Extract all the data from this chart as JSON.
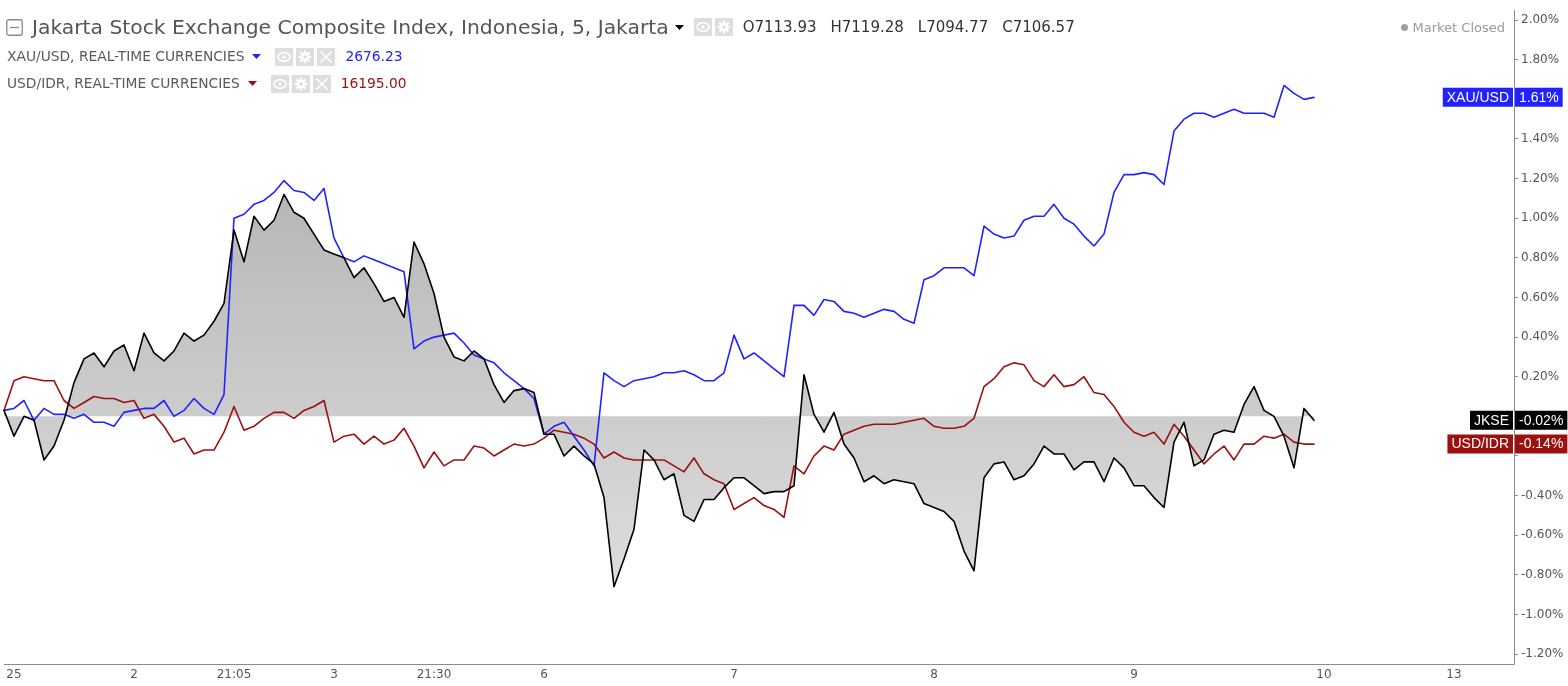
{
  "chart_data": {
    "type": "line",
    "categories": [
      null,
      "25",
      null,
      null,
      null,
      null,
      null,
      null,
      null,
      null,
      null,
      null,
      null,
      "2",
      null,
      null,
      null,
      null,
      null,
      null,
      null,
      null,
      null,
      "21:05",
      null,
      null,
      null,
      null,
      null,
      null,
      null,
      null,
      null,
      "3",
      null,
      null,
      null,
      null,
      null,
      null,
      null,
      null,
      null,
      "21:30",
      null,
      null,
      null,
      null,
      null,
      null,
      null,
      null,
      null,
      null,
      "6",
      null,
      null,
      null,
      null,
      null,
      null,
      null,
      null,
      null,
      null,
      null,
      null,
      null,
      null,
      null,
      null,
      null,
      null,
      "7",
      null,
      null,
      null,
      null,
      null,
      null,
      null,
      null,
      null,
      null,
      null,
      null,
      null,
      null,
      null,
      null,
      null,
      null,
      null,
      "8",
      null,
      null,
      null,
      null,
      null,
      null,
      null,
      null,
      null,
      null,
      null,
      null,
      null,
      null,
      null,
      null,
      null,
      null,
      null,
      "9",
      null,
      null,
      null,
      null,
      null,
      null,
      null,
      null,
      null,
      null,
      null,
      null,
      null,
      null,
      null,
      null,
      null,
      null,
      "10",
      null,
      null,
      null,
      null,
      null,
      null,
      null,
      null,
      null,
      null,
      null,
      null,
      "13",
      null,
      null,
      null,
      null,
      null,
      null
    ],
    "series": [
      {
        "name": "Jakarta Stock Exchange Composite Index, Indonesia, 5, Jakarta",
        "type": "area",
        "color": "#000000",
        "values": [
          0.03,
          -0.1,
          0.0,
          -0.02,
          -0.22,
          -0.15,
          -0.02,
          0.17,
          0.29,
          0.32,
          0.25,
          0.33,
          0.36,
          0.23,
          0.42,
          0.32,
          0.28,
          0.33,
          0.42,
          0.38,
          0.41,
          0.48,
          0.57,
          0.94,
          0.78,
          1.01,
          0.94,
          0.99,
          1.12,
          1.03,
          1.0,
          0.92,
          0.84,
          0.82,
          0.8,
          0.7,
          0.75,
          0.67,
          0.58,
          0.6,
          0.5,
          0.88,
          0.77,
          0.62,
          0.4,
          0.3,
          0.28,
          0.33,
          0.29,
          0.16,
          0.07,
          0.13,
          0.14,
          0.12,
          -0.09,
          -0.09,
          -0.2,
          -0.15,
          -0.2,
          -0.24,
          -0.41,
          -0.86,
          -0.72,
          -0.57,
          -0.17,
          -0.22,
          -0.32,
          -0.29,
          -0.5,
          -0.53,
          -0.42,
          -0.42,
          -0.36,
          -0.31,
          -0.31,
          -0.35,
          -0.39,
          -0.38,
          -0.38,
          -0.35,
          0.21,
          0.01,
          -0.08,
          0.02,
          -0.14,
          -0.21,
          -0.33,
          -0.3,
          -0.34,
          -0.32,
          -0.33,
          -0.34,
          -0.44,
          -0.46,
          -0.48,
          -0.53,
          -0.68,
          -0.78,
          -0.31,
          -0.24,
          -0.23,
          -0.32,
          -0.3,
          -0.24,
          -0.15,
          -0.19,
          -0.19,
          -0.27,
          -0.23,
          -0.23,
          -0.33,
          -0.21,
          -0.26,
          -0.35,
          -0.35,
          -0.41,
          -0.46,
          -0.13,
          -0.03,
          -0.25,
          -0.22,
          -0.09,
          -0.07,
          -0.08,
          0.06,
          0.15,
          0.03,
          0.0,
          -0.1,
          -0.26,
          0.04,
          -0.02,
          null,
          null,
          null,
          null,
          null,
          null,
          null,
          null,
          null,
          null,
          null,
          null,
          null,
          null,
          null,
          null,
          null,
          null,
          null,
          null
        ]
      },
      {
        "name": "XAU/USD, REAL-TIME CURRENCIES",
        "type": "line",
        "color": "#2222ff",
        "values": [
          0.03,
          0.04,
          0.08,
          -0.02,
          0.04,
          0.01,
          0.01,
          -0.01,
          0.01,
          -0.03,
          -0.03,
          -0.05,
          0.02,
          0.03,
          0.04,
          0.04,
          0.08,
          0.0,
          0.03,
          0.09,
          0.04,
          0.01,
          0.11,
          1.0,
          1.02,
          1.07,
          1.09,
          1.13,
          1.19,
          1.14,
          1.13,
          1.09,
          1.15,
          0.9,
          0.8,
          0.78,
          0.81,
          0.79,
          0.77,
          0.75,
          0.73,
          0.34,
          0.38,
          0.4,
          0.41,
          0.42,
          0.37,
          0.31,
          0.29,
          0.27,
          0.22,
          0.18,
          0.14,
          0.09,
          -0.09,
          -0.05,
          -0.03,
          -0.1,
          -0.17,
          -0.25,
          0.22,
          0.18,
          0.15,
          0.18,
          0.19,
          0.2,
          0.22,
          0.22,
          0.23,
          0.21,
          0.18,
          0.18,
          0.22,
          0.41,
          0.29,
          0.32,
          0.28,
          0.24,
          0.2,
          0.56,
          0.56,
          0.51,
          0.59,
          0.58,
          0.53,
          0.52,
          0.5,
          0.52,
          0.54,
          0.53,
          0.49,
          0.47,
          0.69,
          0.71,
          0.75,
          0.75,
          0.75,
          0.71,
          0.96,
          0.92,
          0.9,
          0.91,
          0.99,
          1.01,
          1.01,
          1.07,
          1.0,
          0.97,
          0.91,
          0.86,
          0.92,
          1.13,
          1.22,
          1.22,
          1.23,
          1.22,
          1.17,
          1.44,
          1.5,
          1.53,
          1.53,
          1.51,
          1.53,
          1.55,
          1.53,
          1.53,
          1.53,
          1.51,
          1.67,
          1.63,
          1.6,
          1.61,
          null,
          null,
          null,
          null,
          null,
          null,
          null,
          null,
          null,
          null,
          null,
          null,
          null,
          null,
          null,
          null,
          null,
          null,
          null,
          null
        ]
      },
      {
        "name": "USD/IDR, REAL-TIME CURRENCIES",
        "type": "line",
        "color": "#9c1010",
        "values": [
          0.03,
          0.18,
          0.2,
          0.19,
          0.18,
          0.18,
          0.08,
          0.04,
          0.07,
          0.1,
          0.09,
          0.09,
          0.07,
          0.08,
          -0.01,
          0.01,
          -0.05,
          -0.13,
          -0.11,
          -0.19,
          -0.17,
          -0.17,
          -0.08,
          0.05,
          -0.07,
          -0.05,
          -0.01,
          0.02,
          0.02,
          -0.01,
          0.03,
          0.05,
          0.08,
          -0.13,
          -0.1,
          -0.09,
          -0.14,
          -0.1,
          -0.14,
          -0.12,
          -0.06,
          -0.15,
          -0.26,
          -0.18,
          -0.25,
          -0.22,
          -0.22,
          -0.15,
          -0.16,
          -0.2,
          -0.17,
          -0.14,
          -0.15,
          -0.14,
          -0.11,
          -0.07,
          -0.08,
          -0.09,
          -0.11,
          -0.14,
          -0.21,
          -0.18,
          -0.21,
          -0.22,
          -0.22,
          -0.22,
          -0.22,
          -0.25,
          -0.28,
          -0.21,
          -0.29,
          -0.32,
          -0.34,
          -0.47,
          -0.44,
          -0.41,
          -0.45,
          -0.47,
          -0.51,
          -0.25,
          -0.29,
          -0.2,
          -0.15,
          -0.17,
          -0.09,
          -0.07,
          -0.05,
          -0.04,
          -0.04,
          -0.04,
          -0.03,
          -0.02,
          -0.01,
          -0.05,
          -0.06,
          -0.06,
          -0.05,
          -0.01,
          0.15,
          0.19,
          0.25,
          0.27,
          0.26,
          0.18,
          0.15,
          0.21,
          0.15,
          0.16,
          0.2,
          0.12,
          0.11,
          0.05,
          -0.03,
          -0.08,
          -0.1,
          -0.08,
          -0.14,
          -0.04,
          -0.1,
          -0.17,
          -0.24,
          -0.19,
          -0.15,
          -0.22,
          -0.14,
          -0.14,
          -0.1,
          -0.11,
          -0.09,
          -0.13,
          -0.14,
          -0.14,
          null,
          null,
          null,
          null,
          null,
          null,
          null,
          null,
          null,
          null,
          null,
          null,
          null,
          null,
          null,
          null,
          null,
          null,
          null,
          null
        ]
      }
    ],
    "ylim": [
      -1.25,
      2.05
    ],
    "yticks": [
      {
        "value": -1.2,
        "label": "-1.20%"
      },
      {
        "value": -1,
        "label": "-1.00%"
      },
      {
        "value": -0.8,
        "label": "-0.80%"
      },
      {
        "value": -0.6,
        "label": "-0.60%"
      },
      {
        "value": -0.4,
        "label": "-0.40%"
      },
      {
        "value": -0.2,
        "label": null
      },
      {
        "value": 0,
        "label": null
      },
      {
        "value": 0.2,
        "label": "0.20%"
      },
      {
        "value": 0.4,
        "label": "0.40%"
      },
      {
        "value": 0.6,
        "label": "0.60%"
      },
      {
        "value": 0.8,
        "label": "0.80%"
      },
      {
        "value": 1,
        "label": "1.00%"
      },
      {
        "value": 1.2,
        "label": "1.20%"
      },
      {
        "value": 1.4,
        "label": "1.40%"
      },
      {
        "value": 1.6,
        "label": null
      },
      {
        "value": 1.8,
        "label": "1.80%"
      },
      {
        "value": 2,
        "label": "2.00%"
      }
    ],
    "legend": "top left",
    "marker": "none",
    "annotations": [
      "O7113.93",
      "H7119.28",
      "L7094.77",
      "C7106.57",
      "2676.23",
      "16195.00",
      "Market Closed",
      "XAU/USD",
      "1.61%",
      "JKSE",
      "-0.02%",
      "USD/IDR",
      "-0.14%"
    ]
  }
}
